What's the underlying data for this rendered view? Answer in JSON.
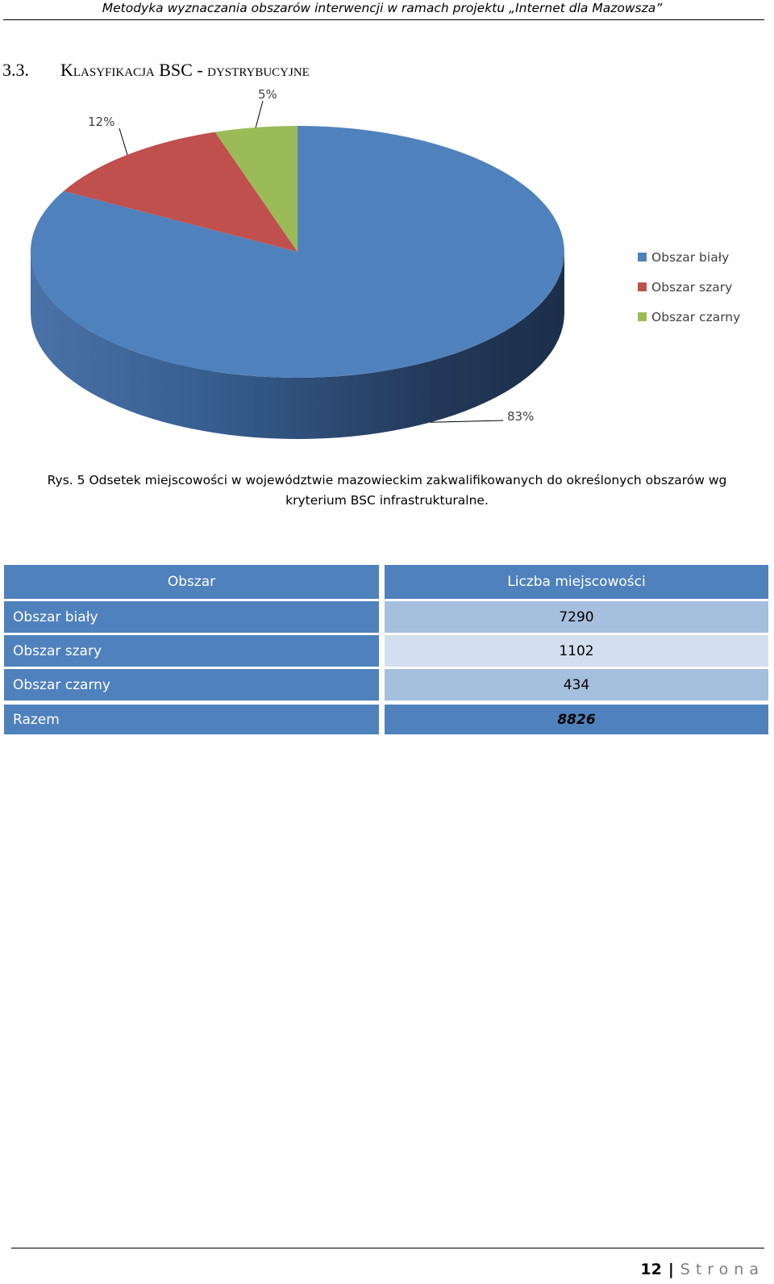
{
  "header": {
    "running_title": "Metodyka wyznaczania obszarów interwencji w ramach projektu „Internet dla Mazowsza”"
  },
  "section": {
    "number": "3.3.",
    "title": "Klasyfikacja BSC - dystrybucyjne"
  },
  "chart_data": {
    "type": "pie",
    "title": "",
    "categories": [
      "Obszar biały",
      "Obszar szary",
      "Obszar czarny"
    ],
    "values": [
      83,
      12,
      5
    ],
    "labels": [
      "83%",
      "12%",
      "5%"
    ],
    "colors": [
      "#4f81bd",
      "#c0504d",
      "#9bbb59"
    ],
    "legend": [
      "Obszar biały",
      "Obszar szary",
      "Obszar czarny"
    ],
    "legend_position": "right",
    "style": "3d"
  },
  "caption": {
    "line1": "Rys. 5 Odsetek miejscowości w województwie mazowieckim zakwalifikowanych do określonych obszarów wg",
    "line2": "kryterium BSC infrastrukturalne."
  },
  "table": {
    "headers": [
      "Obszar",
      "Liczba miejscowości"
    ],
    "rows": [
      {
        "area": "Obszar biały",
        "count": "7290"
      },
      {
        "area": "Obszar szary",
        "count": "1102"
      },
      {
        "area": "Obszar czarny",
        "count": "434"
      }
    ],
    "total": {
      "area": "Razem",
      "count": "8826"
    }
  },
  "footer": {
    "page_number": "12",
    "separator": "|",
    "page_word": "Strona"
  }
}
